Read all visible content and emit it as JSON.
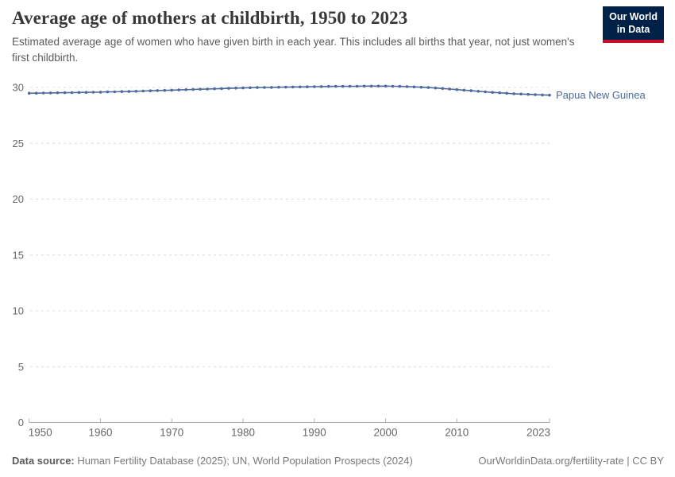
{
  "header": {
    "title": "Average age of mothers at childbirth, 1950 to 2023",
    "subtitle": "Estimated average age of women who have given birth in each year. This includes all births that year, not just women's first childbirth."
  },
  "logo": {
    "line1": "Our World",
    "line2": "in Data",
    "bg_color": "#002147",
    "stripe_color": "#C8102E"
  },
  "chart_data": {
    "type": "line",
    "title": "Average age of mothers at childbirth, 1950 to 2023",
    "xlabel": "",
    "ylabel": "",
    "xlim": [
      1950,
      2023
    ],
    "ylim": [
      0,
      31
    ],
    "grid": "horizontal-dashed",
    "legend_position": "end-of-line-label",
    "x_ticks": [
      1950,
      1960,
      1970,
      1980,
      1990,
      2000,
      2010,
      2023
    ],
    "y_ticks": [
      0,
      5,
      10,
      15,
      20,
      25,
      30
    ],
    "colors": {
      "line": "#4C6A9C",
      "gridline": "#dcdcdc",
      "axis": "#a8a8a8",
      "tick": "#b0b0b0",
      "tick_label": "#666666"
    },
    "series": [
      {
        "name": "Papua New Guinea",
        "color": "#4C6A9C",
        "x": [
          1950,
          1951,
          1952,
          1953,
          1954,
          1955,
          1956,
          1957,
          1958,
          1959,
          1960,
          1961,
          1962,
          1963,
          1964,
          1965,
          1966,
          1967,
          1968,
          1969,
          1970,
          1971,
          1972,
          1973,
          1974,
          1975,
          1976,
          1977,
          1978,
          1979,
          1980,
          1981,
          1982,
          1983,
          1984,
          1985,
          1986,
          1987,
          1988,
          1989,
          1990,
          1991,
          1992,
          1993,
          1994,
          1995,
          1996,
          1997,
          1998,
          1999,
          2000,
          2001,
          2002,
          2003,
          2004,
          2005,
          2006,
          2007,
          2008,
          2009,
          2010,
          2011,
          2012,
          2013,
          2014,
          2015,
          2016,
          2017,
          2018,
          2019,
          2020,
          2021,
          2022,
          2023
        ],
        "values": [
          29.48,
          29.49,
          29.5,
          29.51,
          29.52,
          29.53,
          29.54,
          29.55,
          29.56,
          29.57,
          29.58,
          29.6,
          29.61,
          29.63,
          29.64,
          29.66,
          29.68,
          29.7,
          29.72,
          29.74,
          29.76,
          29.78,
          29.8,
          29.82,
          29.84,
          29.86,
          29.88,
          29.9,
          29.92,
          29.94,
          29.96,
          29.98,
          29.99,
          30.0,
          30.01,
          30.02,
          30.03,
          30.04,
          30.05,
          30.06,
          30.07,
          30.08,
          30.09,
          30.1,
          30.1,
          30.11,
          30.11,
          30.12,
          30.12,
          30.12,
          30.12,
          30.11,
          30.1,
          30.08,
          30.05,
          30.02,
          29.99,
          29.95,
          29.91,
          29.86,
          29.81,
          29.76,
          29.71,
          29.66,
          29.61,
          29.56,
          29.52,
          29.48,
          29.44,
          29.41,
          29.38,
          29.35,
          29.33,
          29.31
        ]
      }
    ]
  },
  "footer": {
    "source_label": "Data source:",
    "source_text": " Human Fertility Database (2025); UN, World Population Prospects (2024)",
    "link_text": "OurWorldinData.org/fertility-rate | CC BY"
  }
}
